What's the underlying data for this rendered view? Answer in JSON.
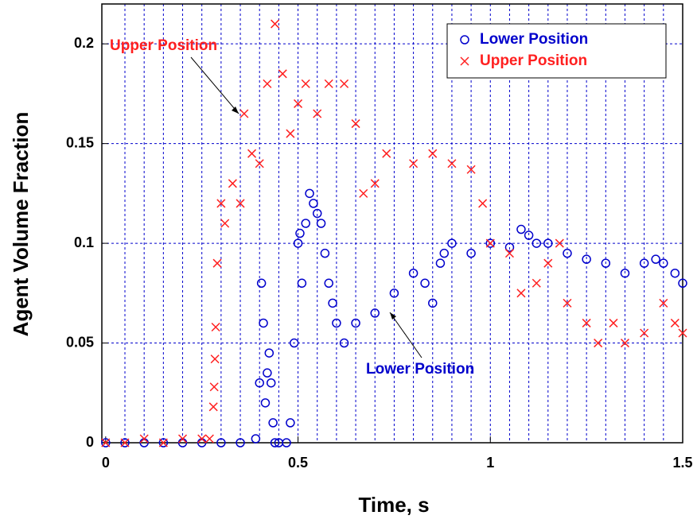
{
  "chart_data": {
    "type": "scatter",
    "xlabel": "Time, s",
    "ylabel": "Agent Volume Fraction",
    "xlim": [
      -0.01,
      1.5
    ],
    "ylim": [
      0,
      0.22
    ],
    "xticks": [
      0,
      0.5,
      1,
      1.5
    ],
    "yticks": [
      0,
      0.05,
      0.1,
      0.15,
      0.2
    ],
    "xgrid": [
      0.05,
      0.1,
      0.15,
      0.2,
      0.25,
      0.3,
      0.35,
      0.4,
      0.45,
      0.5,
      0.55,
      0.6,
      0.65,
      0.7,
      0.75,
      0.8,
      0.85,
      0.9,
      0.95,
      1,
      1.05,
      1.1,
      1.15,
      1.2,
      1.25,
      1.3,
      1.35,
      1.4,
      1.45
    ],
    "grid": true,
    "legend": "upper right",
    "annotations": [
      "Upper Position",
      "Lower Position"
    ],
    "series": [
      {
        "name": "Lower Position",
        "color": "#0000cc",
        "marker": "circle",
        "x": [
          0,
          0.05,
          0.1,
          0.15,
          0.2,
          0.25,
          0.3,
          0.35,
          0.39,
          0.4,
          0.405,
          0.41,
          0.415,
          0.42,
          0.425,
          0.43,
          0.435,
          0.44,
          0.45,
          0.47,
          0.48,
          0.49,
          0.5,
          0.505,
          0.51,
          0.52,
          0.53,
          0.54,
          0.55,
          0.56,
          0.57,
          0.58,
          0.59,
          0.6,
          0.62,
          0.65,
          0.7,
          0.75,
          0.8,
          0.83,
          0.85,
          0.87,
          0.88,
          0.9,
          0.95,
          1,
          1.05,
          1.08,
          1.1,
          1.12,
          1.15,
          1.2,
          1.25,
          1.3,
          1.35,
          1.4,
          1.43,
          1.45,
          1.48,
          1.5
        ],
        "values": [
          0,
          0,
          0,
          0,
          0,
          0,
          0,
          0,
          0.002,
          0.03,
          0.08,
          0.06,
          0.02,
          0.035,
          0.045,
          0.03,
          0.01,
          0,
          0,
          0,
          0.01,
          0.05,
          0.1,
          0.105,
          0.08,
          0.11,
          0.125,
          0.12,
          0.115,
          0.11,
          0.095,
          0.08,
          0.07,
          0.06,
          0.05,
          0.06,
          0.065,
          0.075,
          0.085,
          0.08,
          0.07,
          0.09,
          0.095,
          0.1,
          0.095,
          0.1,
          0.098,
          0.107,
          0.104,
          0.1,
          0.1,
          0.095,
          0.092,
          0.09,
          0.085,
          0.09,
          0.092,
          0.09,
          0.085,
          0.08
        ]
      },
      {
        "name": "Upper Position",
        "color": "#ff2020",
        "marker": "x",
        "x": [
          0,
          0.05,
          0.1,
          0.15,
          0.2,
          0.25,
          0.27,
          0.28,
          0.282,
          0.284,
          0.286,
          0.29,
          0.3,
          0.31,
          0.33,
          0.35,
          0.36,
          0.38,
          0.4,
          0.42,
          0.44,
          0.46,
          0.48,
          0.5,
          0.52,
          0.55,
          0.58,
          0.62,
          0.65,
          0.67,
          0.7,
          0.73,
          0.8,
          0.85,
          0.9,
          0.95,
          0.98,
          1,
          1.05,
          1.08,
          1.12,
          1.15,
          1.18,
          1.2,
          1.25,
          1.28,
          1.32,
          1.35,
          1.4,
          1.45,
          1.48,
          1.5
        ],
        "values": [
          0,
          0,
          0.002,
          0,
          0.002,
          0.002,
          0.002,
          0.018,
          0.028,
          0.042,
          0.058,
          0.09,
          0.12,
          0.11,
          0.13,
          0.12,
          0.165,
          0.145,
          0.14,
          0.18,
          0.21,
          0.185,
          0.155,
          0.17,
          0.18,
          0.165,
          0.18,
          0.18,
          0.16,
          0.125,
          0.13,
          0.145,
          0.14,
          0.145,
          0.14,
          0.137,
          0.12,
          0.1,
          0.095,
          0.075,
          0.08,
          0.09,
          0.1,
          0.07,
          0.06,
          0.05,
          0.06,
          0.05,
          0.055,
          0.07,
          0.06,
          0.055
        ]
      }
    ]
  }
}
